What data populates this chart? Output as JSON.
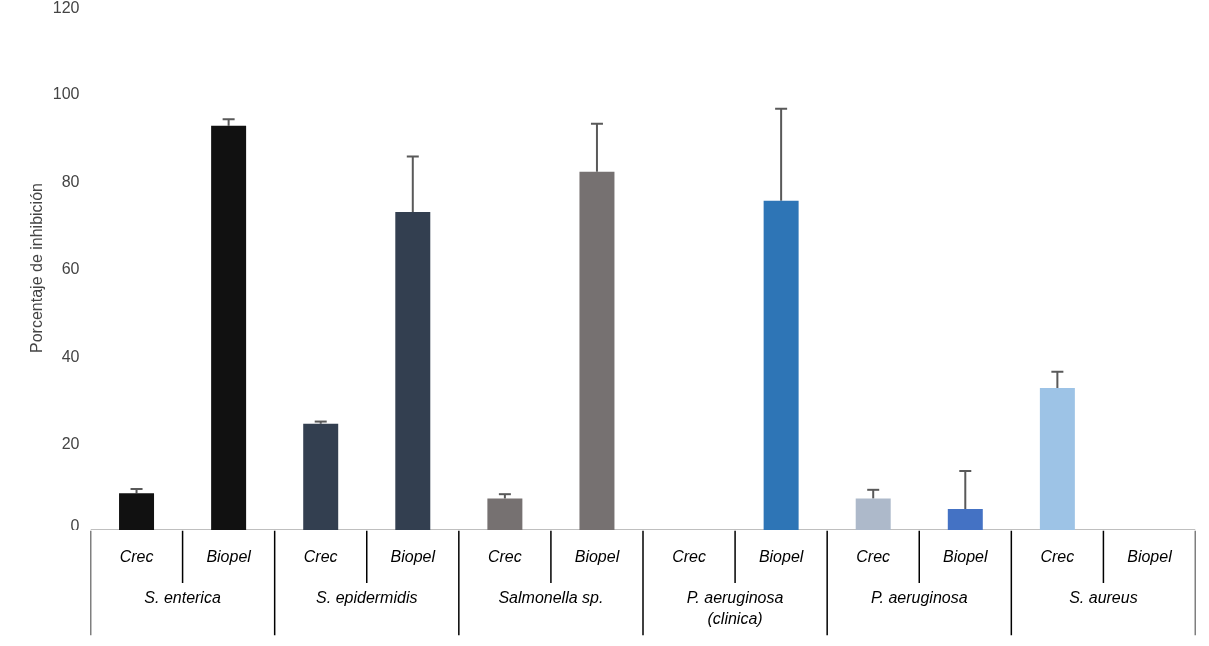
{
  "chart_data": {
    "type": "bar",
    "ylabel": "Porcentaje de inhibición",
    "categories": [
      "Crec",
      "Biopel",
      "Crec",
      "Biopel",
      "Crec",
      "Biopel",
      "Crec",
      "Biopel",
      "Crec",
      "Biopel",
      "Crec",
      "Biopel"
    ],
    "values": [
      8.5,
      92.5,
      24.4,
      72.8,
      7.3,
      82,
      0,
      75.4,
      7.3,
      4.9,
      32.6,
      0
    ],
    "errors": [
      1,
      1.5,
      0.5,
      12.7,
      1,
      11,
      null,
      21,
      2,
      8.7,
      3.7,
      null
    ],
    "colors": [
      "#111111",
      "#111111",
      "#333f50",
      "#333f50",
      "#767171",
      "#767171",
      "#2e75b6",
      "#2e75b6",
      "#adb9ca",
      "#4472c4",
      "#9dc3e6",
      "#9dc3e6"
    ],
    "annotations": [
      "S. enterica",
      "S. epidermidis",
      "Salmonella sp.",
      "P. aeruginosa\n(clinica)",
      "P. aeruginosa",
      "S. aureus"
    ],
    "ylim": [
      0,
      120
    ],
    "yticks": [
      0,
      20,
      40,
      60,
      80,
      100,
      120
    ],
    "grid": false
  }
}
